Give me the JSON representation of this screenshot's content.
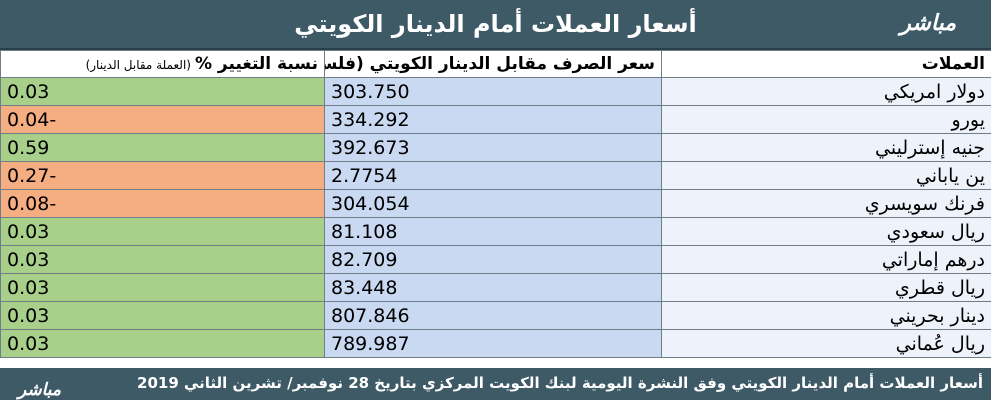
{
  "header": {
    "title": "أسعار العملات أمام الدينار الكويتي",
    "logo": "مباشر"
  },
  "columns": {
    "currency": "العملات",
    "rate": "سعر الصرف مقابل الدينار الكويتي (فلس/وحدة)",
    "change": "نسبة التغيير %",
    "change_note": "(العملة مقابل الدينار)"
  },
  "rows": [
    {
      "currency": "دولار امريكي",
      "rate": "303.750",
      "change": "0.03"
    },
    {
      "currency": "يورو",
      "rate": "334.292",
      "change": "-0.04"
    },
    {
      "currency": "جنيه إسترليني",
      "rate": "392.673",
      "change": "0.59"
    },
    {
      "currency": "ين ياباني",
      "rate": "2.7754",
      "change": "-0.27"
    },
    {
      "currency": "فرنك سويسري",
      "rate": "304.054",
      "change": "-0.08"
    },
    {
      "currency": "ريال سعودي",
      "rate": "81.108",
      "change": "0.03"
    },
    {
      "currency": "درهم إماراتي",
      "rate": "82.709",
      "change": "0.03"
    },
    {
      "currency": "ريال قطري",
      "rate": "83.448",
      "change": "0.03"
    },
    {
      "currency": "دينار بحريني",
      "rate": "807.846",
      "change": "0.03"
    },
    {
      "currency": "ريال عُماني",
      "rate": "789.987",
      "change": "0.03"
    }
  ],
  "footer": {
    "text": "أسعار  العملات أمام الدينار الكويتي وفق النشرة اليومية لبنك الكويت المركزي بتاريخ 28 نوفمبر/ تشرين الثاني 2019",
    "logo": "مباشر"
  },
  "colors": {
    "header_bg": "#3e5a67",
    "positive": "#a8d08a",
    "negative": "#f5ad82",
    "rate_bg": "#c9d9f1",
    "name_bg": "#eef3fb"
  }
}
